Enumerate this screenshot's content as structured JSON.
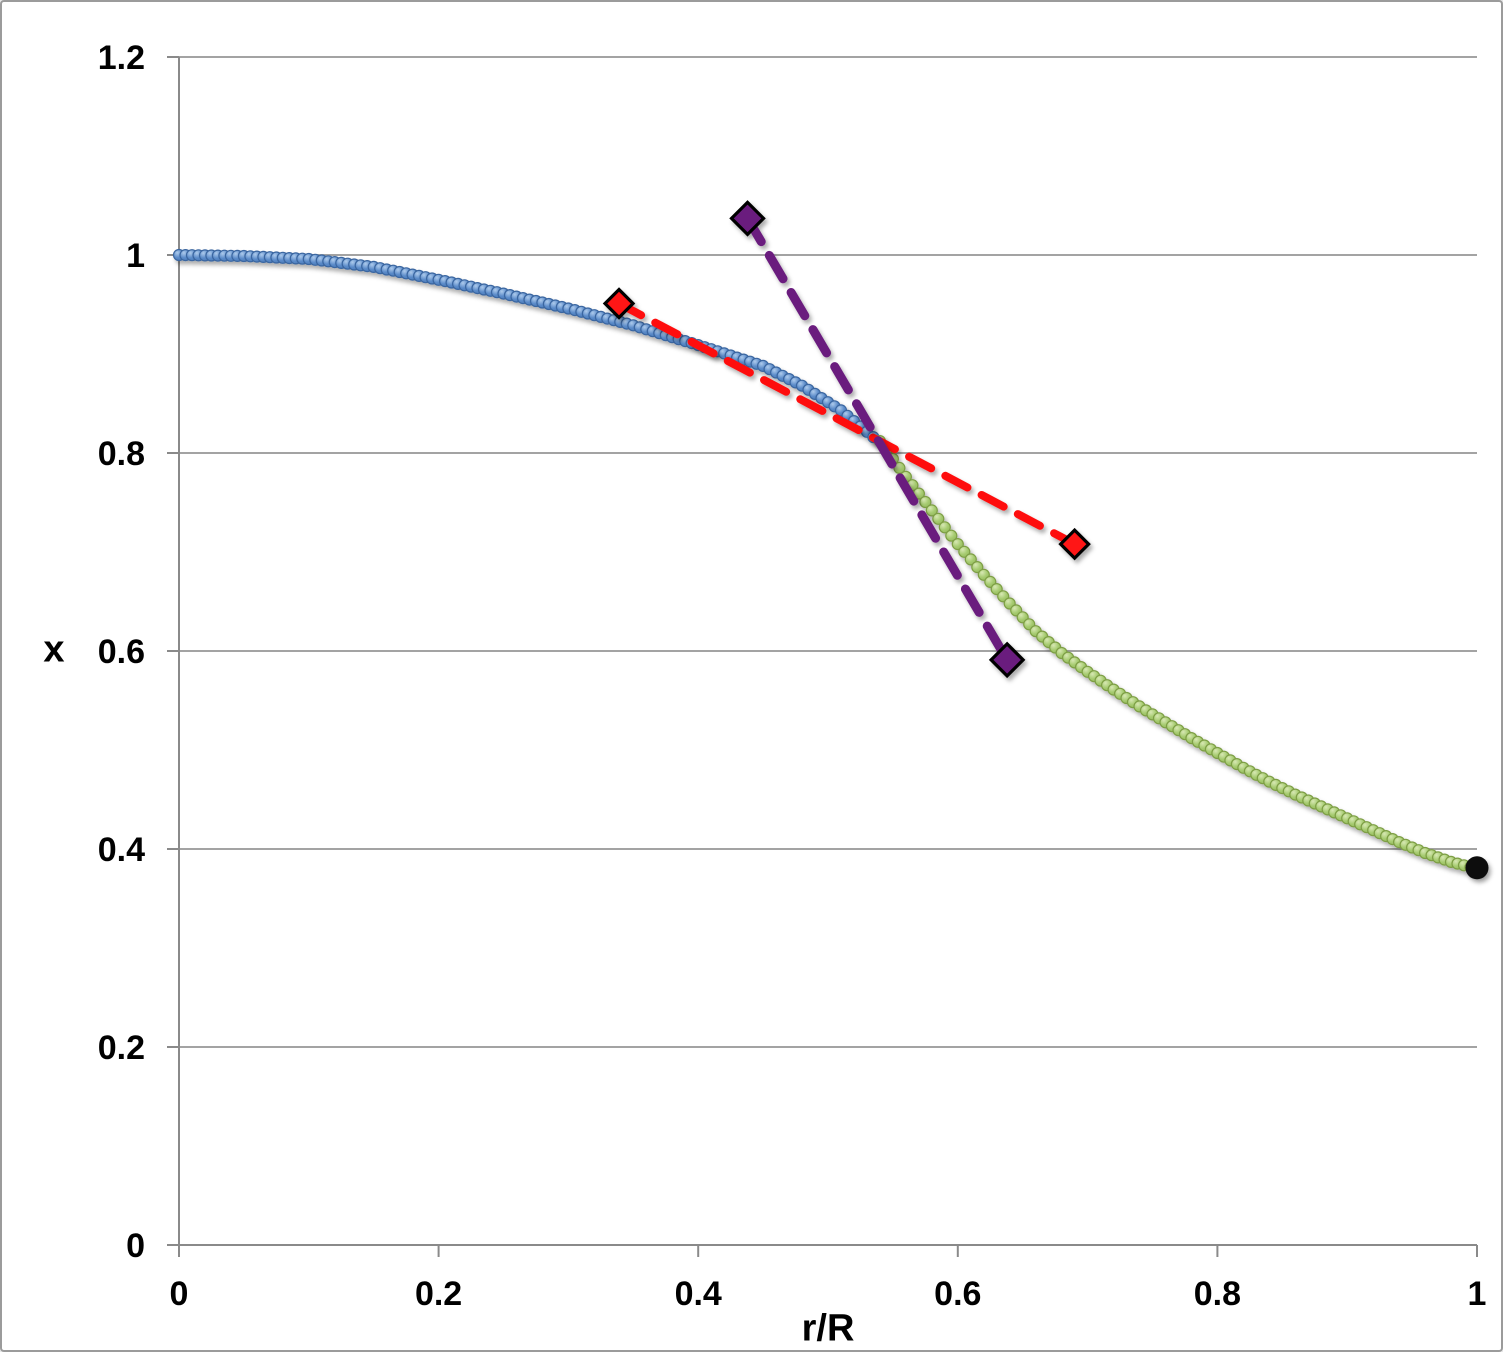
{
  "window": {
    "background": "#ffffff",
    "border_color": "#9b9b9b"
  },
  "chart_data": {
    "type": "scatter",
    "title": "",
    "xlabel": "r/R",
    "ylabel": "x",
    "xlim": [
      0,
      1
    ],
    "ylim": [
      0,
      1.2
    ],
    "grid": "horizontal-only",
    "grid_color": "#a3a3a3",
    "axis_color": "#8a8a8a",
    "legend": "none",
    "x_ticks": [
      {
        "v": 0.0,
        "label": "0"
      },
      {
        "v": 0.2,
        "label": "0.2"
      },
      {
        "v": 0.4,
        "label": "0.4"
      },
      {
        "v": 0.6,
        "label": "0.6"
      },
      {
        "v": 0.8,
        "label": "0.8"
      },
      {
        "v": 1.0,
        "label": "1"
      }
    ],
    "y_ticks": [
      {
        "v": 0.0,
        "label": "0"
      },
      {
        "v": 0.2,
        "label": "0.2"
      },
      {
        "v": 0.4,
        "label": "0.4"
      },
      {
        "v": 0.6,
        "label": "0.6"
      },
      {
        "v": 0.8,
        "label": "0.8"
      },
      {
        "v": 1.0,
        "label": "1"
      },
      {
        "v": 1.2,
        "label": "1.2"
      }
    ],
    "series": [
      {
        "name": "profile-inner-blue-dotted-curve",
        "type": "dotted-curve",
        "marker": "circle",
        "marker_radius": 5.5,
        "step": 0.005,
        "fill": "#5b8bc9",
        "fill_light": "#aecbec",
        "fill_dark": "#4a7ab8",
        "border": "#3a66a0",
        "anchors": [
          [
            0.0,
            1.0
          ],
          [
            0.05,
            0.999
          ],
          [
            0.1,
            0.996
          ],
          [
            0.15,
            0.988
          ],
          [
            0.2,
            0.975
          ],
          [
            0.25,
            0.961
          ],
          [
            0.3,
            0.946
          ],
          [
            0.35,
            0.929
          ],
          [
            0.4,
            0.909
          ],
          [
            0.45,
            0.888
          ],
          [
            0.48,
            0.868
          ],
          [
            0.51,
            0.843
          ],
          [
            0.535,
            0.816
          ]
        ]
      },
      {
        "name": "profile-outer-green-dotted-curve",
        "type": "dotted-curve",
        "marker": "circle",
        "marker_radius": 5.5,
        "step": 0.005,
        "fill": "#a6cb70",
        "fill_light": "#d8e8b4",
        "fill_dark": "#93b85c",
        "border": "#7d9e44",
        "anchors": [
          [
            0.54,
            0.812
          ],
          [
            0.56,
            0.776
          ],
          [
            0.58,
            0.742
          ],
          [
            0.6,
            0.708
          ],
          [
            0.62,
            0.677
          ],
          [
            0.64,
            0.648
          ],
          [
            0.66,
            0.62
          ],
          [
            0.68,
            0.598
          ],
          [
            0.7,
            0.579
          ],
          [
            0.72,
            0.561
          ],
          [
            0.74,
            0.544
          ],
          [
            0.76,
            0.528
          ],
          [
            0.78,
            0.512
          ],
          [
            0.8,
            0.497
          ],
          [
            0.82,
            0.482
          ],
          [
            0.84,
            0.468
          ],
          [
            0.86,
            0.455
          ],
          [
            0.88,
            0.443
          ],
          [
            0.9,
            0.431
          ],
          [
            0.92,
            0.419
          ],
          [
            0.94,
            0.407
          ],
          [
            0.96,
            0.396
          ],
          [
            0.98,
            0.387
          ],
          [
            1.0,
            0.38
          ]
        ]
      },
      {
        "name": "tangent-shallow-red-dashed",
        "type": "dashed-line",
        "color": "#fe0f0f",
        "width": 8,
        "dash": [
          25,
          16
        ],
        "marker": "diamond",
        "marker_fill": "#ff1414",
        "marker_border": "#000000",
        "marker_half_diag": 14,
        "points": [
          [
            0.339,
            0.951
          ],
          [
            0.69,
            0.708
          ]
        ]
      },
      {
        "name": "tangent-steep-purple-dashed",
        "type": "dashed-line",
        "color": "#6b1d7e",
        "width": 9,
        "dash": [
          27,
          16
        ],
        "marker": "diamond",
        "marker_fill": "#6b1d7e",
        "marker_border": "#000000",
        "marker_half_diag": 16,
        "points": [
          [
            0.438,
            1.037
          ],
          [
            0.638,
            0.591
          ]
        ]
      },
      {
        "name": "surface-point-black",
        "type": "point",
        "color": "#0b0b0b",
        "radius": 11.5,
        "points": [
          [
            1.0,
            0.381
          ]
        ]
      }
    ]
  }
}
